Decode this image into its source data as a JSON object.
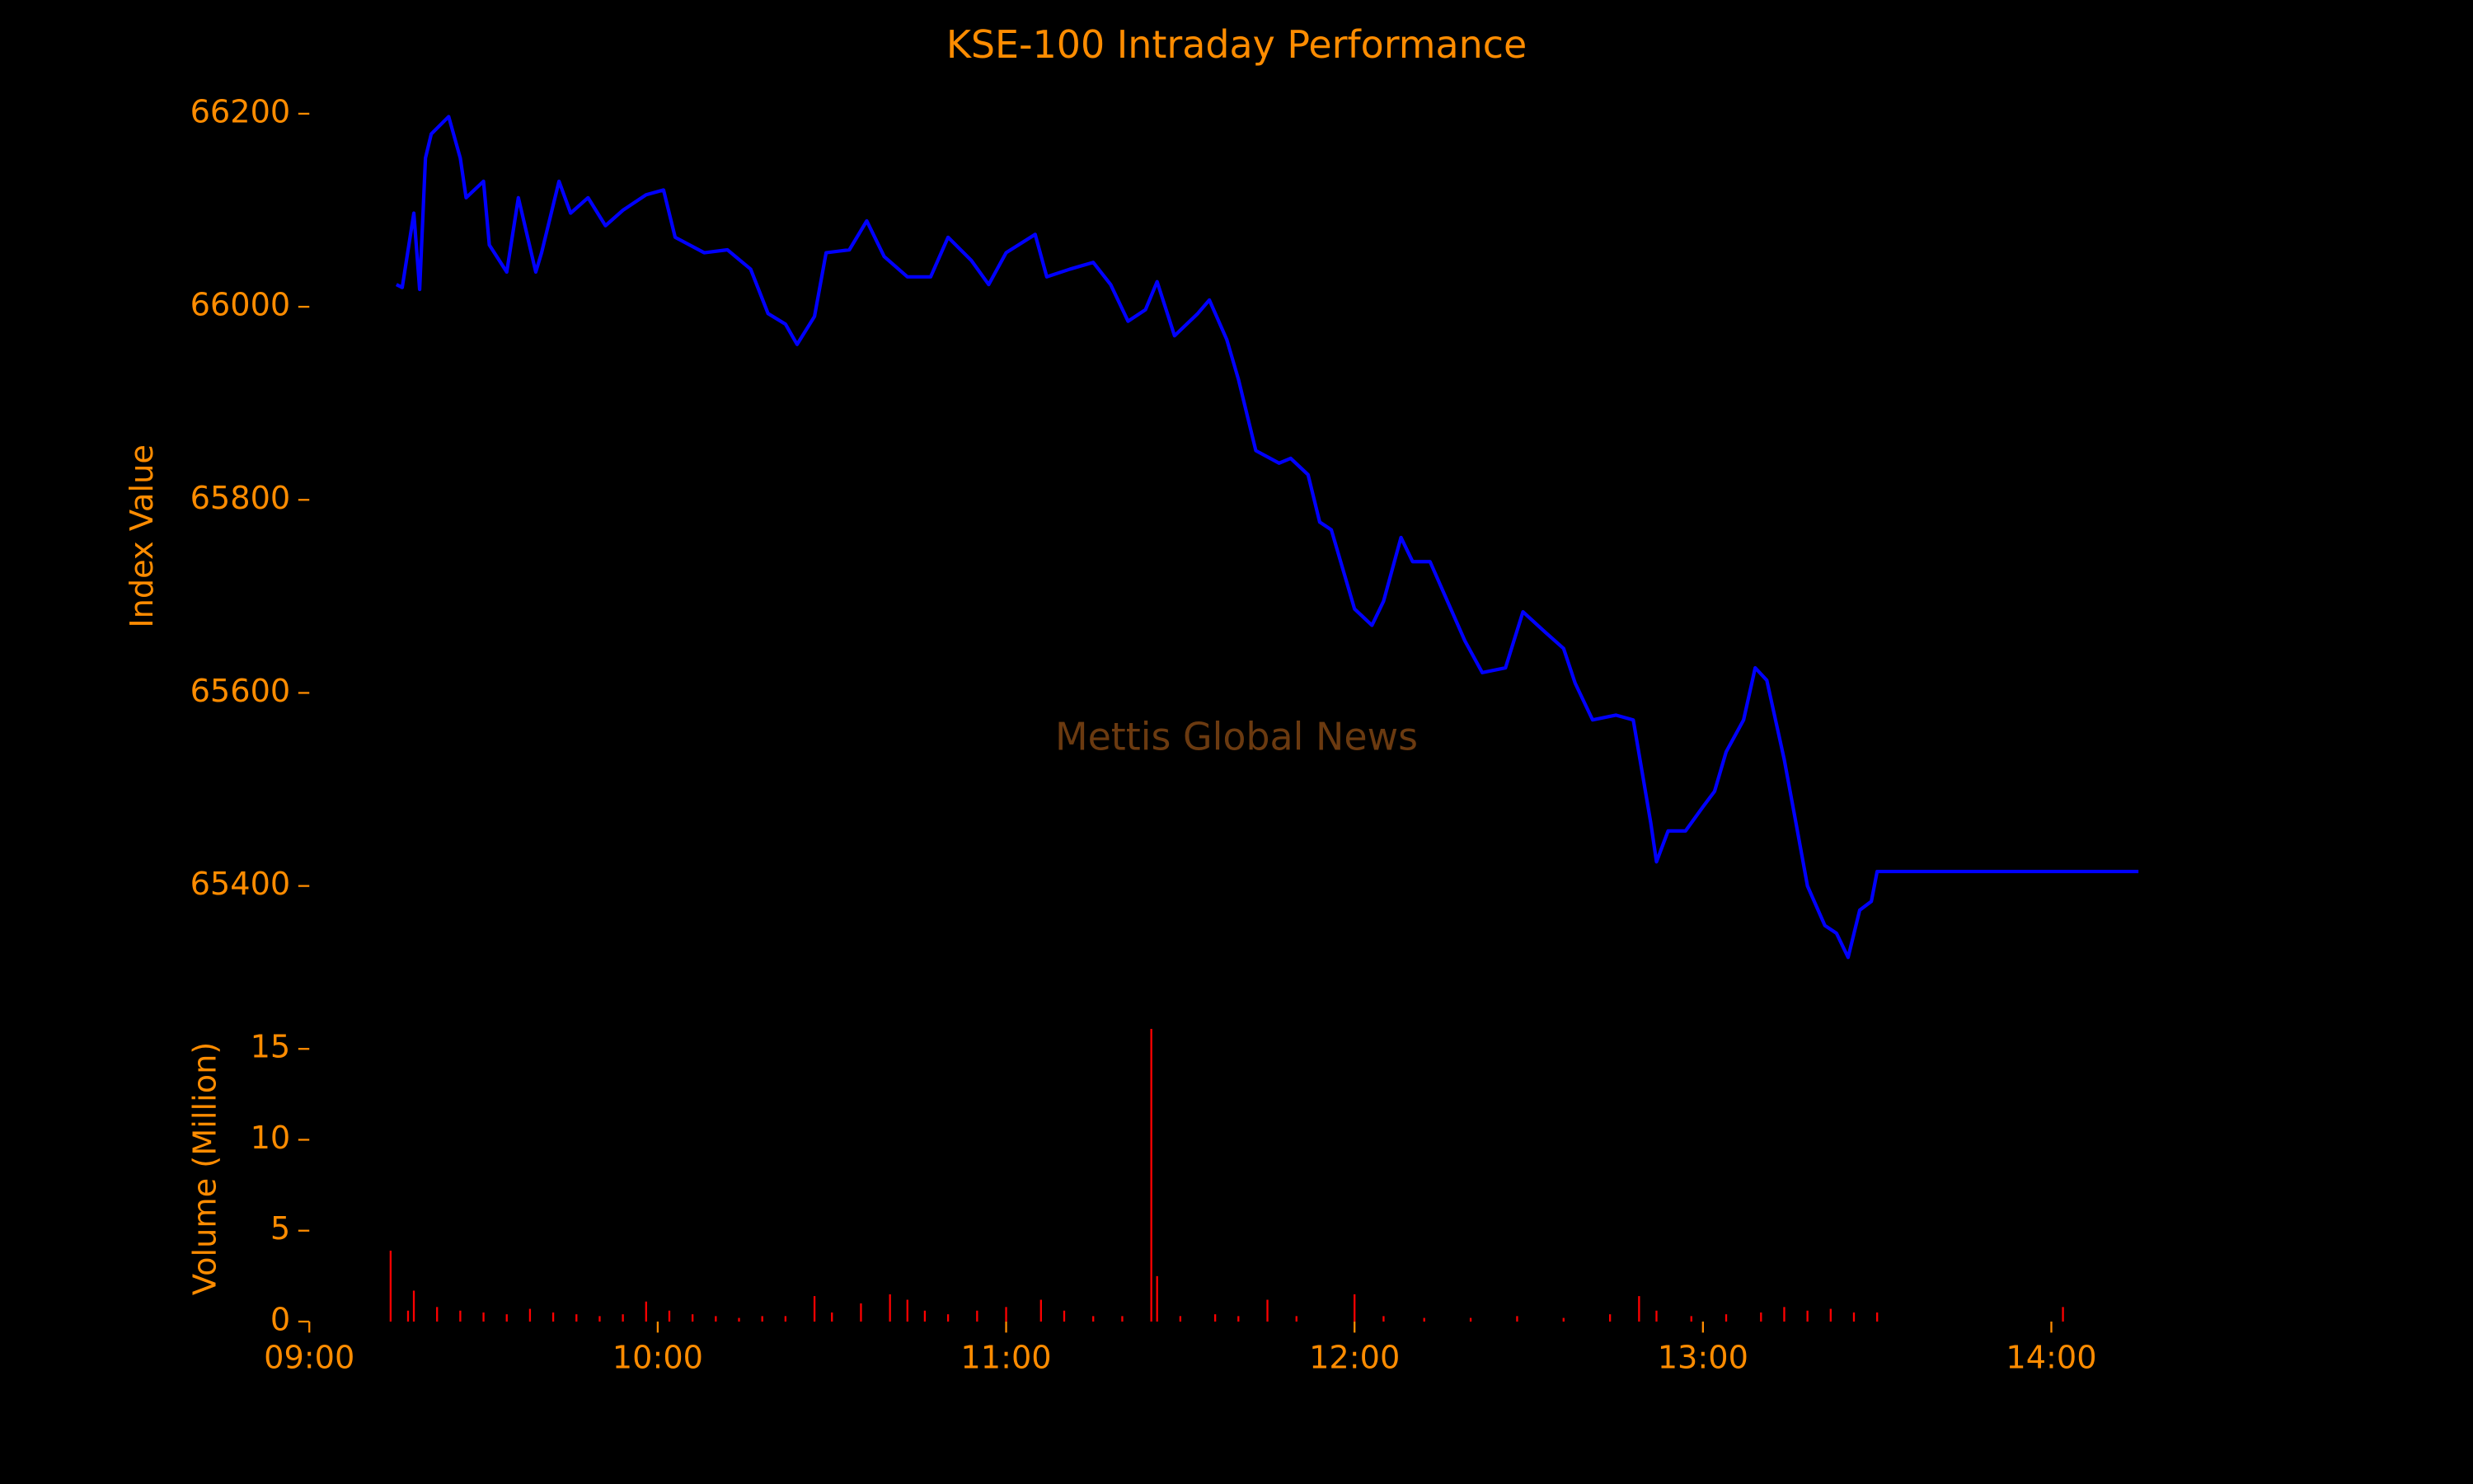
{
  "chart_data": [
    {
      "type": "line",
      "title": "KSE-100 Intraday Performance",
      "ylabel": "Index Value",
      "annotation": "Mettis Global News",
      "xlim": [
        "09:00",
        "14:15"
      ],
      "ylim": [
        65300,
        66250
      ],
      "yticks": [
        65400,
        65600,
        65800,
        66000,
        66200
      ],
      "x": [
        "09:15",
        "09:16",
        "09:18",
        "09:19",
        "09:20",
        "09:21",
        "09:24",
        "09:26",
        "09:27",
        "09:30",
        "09:31",
        "09:34",
        "09:36",
        "09:39",
        "09:40",
        "09:43",
        "09:45",
        "09:48",
        "09:51",
        "09:54",
        "09:58",
        "10:01",
        "10:03",
        "10:08",
        "10:12",
        "10:16",
        "10:19",
        "10:22",
        "10:24",
        "10:27",
        "10:29",
        "10:33",
        "10:36",
        "10:39",
        "10:43",
        "10:47",
        "10:50",
        "10:54",
        "10:57",
        "11:00",
        "11:05",
        "11:07",
        "11:11",
        "11:15",
        "11:18",
        "11:21",
        "11:24",
        "11:26",
        "11:29",
        "11:33",
        "11:35",
        "11:38",
        "11:40",
        "11:43",
        "11:47",
        "11:49",
        "11:52",
        "11:54",
        "11:56",
        "12:00",
        "12:03",
        "12:05",
        "12:08",
        "12:10",
        "12:13",
        "12:16",
        "12:19",
        "12:22",
        "12:26",
        "12:29",
        "12:33",
        "12:36",
        "12:38",
        "12:41",
        "12:45",
        "12:48",
        "12:51",
        "12:52",
        "12:54",
        "12:57",
        "13:00",
        "13:02",
        "13:04",
        "13:07",
        "13:09",
        "13:11",
        "13:14",
        "13:16",
        "13:18",
        "13:21",
        "13:23",
        "13:25",
        "13:27",
        "13:29",
        "13:30",
        "14:15"
      ],
      "series": [
        {
          "name": "KSE-100",
          "color": "#0000ff",
          "values": [
            66023,
            66020,
            66097,
            66018,
            66154,
            66179,
            66197,
            66154,
            66113,
            66130,
            66064,
            66036,
            66113,
            66036,
            66056,
            66130,
            66097,
            66113,
            66084,
            66100,
            66116,
            66121,
            66072,
            66056,
            66059,
            66039,
            65993,
            65982,
            65961,
            65990,
            66056,
            66059,
            66089,
            66052,
            66031,
            66031,
            66072,
            66048,
            66023,
            66056,
            66075,
            66031,
            66039,
            66046,
            66023,
            65985,
            65997,
            66026,
            65970,
            65993,
            66007,
            65966,
            65925,
            65851,
            65838,
            65843,
            65826,
            65777,
            65769,
            65687,
            65670,
            65695,
            65761,
            65736,
            65736,
            65695,
            65654,
            65621,
            65626,
            65684,
            65662,
            65646,
            65610,
            65572,
            65577,
            65572,
            65466,
            65425,
            65457,
            65457,
            65482,
            65498,
            65539,
            65572,
            65626,
            65613,
            65531,
            65466,
            65400,
            65359,
            65351,
            65326,
            65375,
            65384,
            65415,
            65415
          ]
        }
      ]
    },
    {
      "type": "bar",
      "ylabel": "Volume (Million)",
      "color": "#ff0000",
      "xlim": [
        "09:00",
        "14:15"
      ],
      "xticks": [
        "09:00",
        "10:00",
        "11:00",
        "12:00",
        "13:00",
        "14:00"
      ],
      "ylim": [
        0,
        16.5
      ],
      "yticks": [
        0,
        5,
        10,
        15
      ],
      "x": [
        "09:14",
        "09:17",
        "09:18",
        "09:22",
        "09:26",
        "09:30",
        "09:34",
        "09:38",
        "09:42",
        "09:46",
        "09:50",
        "09:54",
        "09:58",
        "10:02",
        "10:06",
        "10:10",
        "10:14",
        "10:18",
        "10:22",
        "10:27",
        "10:30",
        "10:35",
        "10:40",
        "10:43",
        "10:46",
        "10:50",
        "10:55",
        "11:00",
        "11:06",
        "11:10",
        "11:15",
        "11:20",
        "11:25",
        "11:26",
        "11:30",
        "11:36",
        "11:40",
        "11:45",
        "11:50",
        "12:00",
        "12:05",
        "12:12",
        "12:20",
        "12:28",
        "12:36",
        "12:44",
        "12:49",
        "12:52",
        "12:58",
        "13:04",
        "13:10",
        "13:14",
        "13:18",
        "13:22",
        "13:26",
        "13:30",
        "14:02"
      ],
      "values": [
        3.9,
        0.6,
        1.7,
        0.8,
        0.6,
        0.5,
        0.4,
        0.7,
        0.5,
        0.4,
        0.3,
        0.4,
        1.1,
        0.6,
        0.4,
        0.3,
        0.2,
        0.3,
        0.3,
        1.4,
        0.5,
        1.0,
        1.5,
        1.2,
        0.6,
        0.4,
        0.6,
        0.8,
        1.2,
        0.6,
        0.3,
        0.3,
        16.1,
        2.5,
        0.3,
        0.4,
        0.3,
        1.2,
        0.3,
        1.5,
        0.3,
        0.2,
        0.2,
        0.3,
        0.2,
        0.4,
        1.4,
        0.6,
        0.3,
        0.4,
        0.5,
        0.8,
        0.6,
        0.7,
        0.5,
        0.5,
        0.8
      ]
    }
  ]
}
